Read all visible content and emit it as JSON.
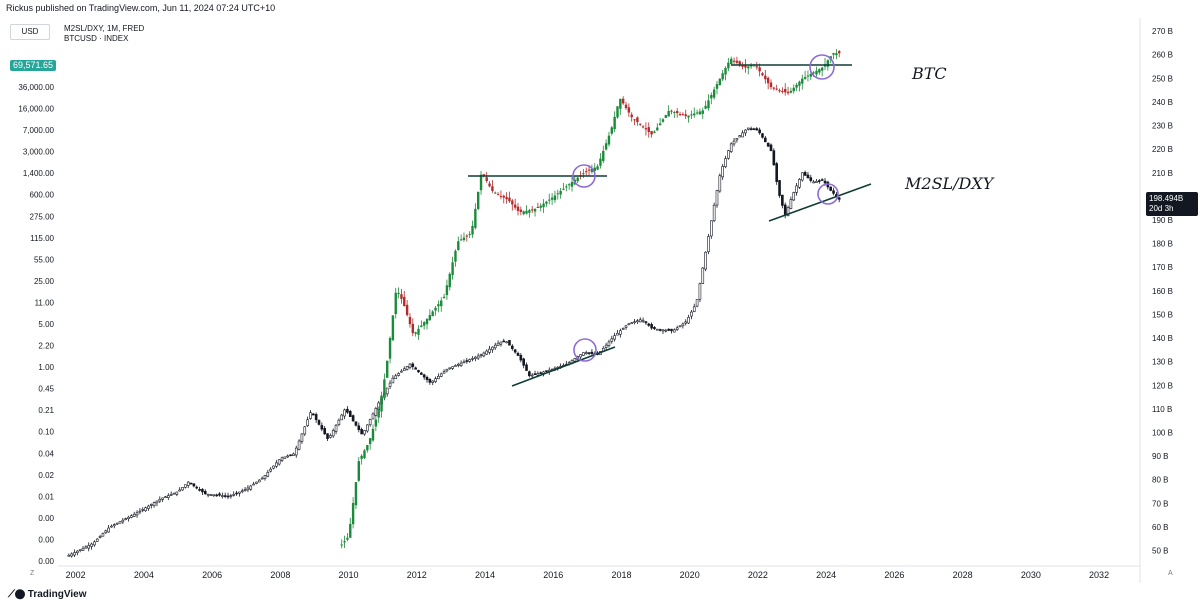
{
  "header": {
    "published": "Rickus published on TradingView.com, Jun 11, 2024 07:24 UTC+10",
    "currency_button": "USD",
    "legend_line1": "M2SL/DXY, 1M, FRED",
    "legend_line2": "BTCUSD · INDEX",
    "btc_price_badge": "69,571.65",
    "m2_value_badge": "198.494B",
    "m2_value_badge_sub": "20d 3h"
  },
  "footer": {
    "logo_text": "TradingView",
    "corner_left": "Z",
    "corner_right": "A"
  },
  "colors": {
    "up": "#26a69a",
    "down": "#ef5350",
    "btc_up": "#1b8a3a",
    "btc_down": "#b52a2a",
    "m2": "#131722",
    "trendline": "#0f3d36",
    "circle": "#8e6bd6",
    "grid": "#f0f3fa",
    "axis_text": "#131722"
  },
  "chart_data": {
    "type": "candlestick",
    "x_ticks": [
      "2002",
      "2004",
      "2006",
      "2008",
      "2010",
      "2012",
      "2014",
      "2016",
      "2018",
      "2020",
      "2022",
      "2024",
      "2026",
      "2028",
      "2030",
      "2032"
    ],
    "xlim": [
      2001.6,
      2033.2
    ],
    "left_axis": {
      "series": "BTCUSD",
      "scale": "log",
      "ticks": [
        "0.00",
        "0.00",
        "0.00",
        "0.01",
        "0.02",
        "0.04",
        "0.10",
        "0.21",
        "0.45",
        "1.00",
        "2.20",
        "5.00",
        "11.00",
        "25.00",
        "55.00",
        "115.00",
        "275.00",
        "600.00",
        "1,400.00",
        "3,000.00",
        "7,000.00",
        "16,000.00",
        "36,000.00"
      ]
    },
    "right_axis": {
      "series": "M2SL/DXY",
      "ticks": [
        "50 B",
        "60 B",
        "70 B",
        "80 B",
        "90 B",
        "100 B",
        "110 B",
        "120 B",
        "130 B",
        "140 B",
        "150 B",
        "160 B",
        "170 B",
        "180 B",
        "190 B",
        "200 B",
        "210 B",
        "220 B",
        "230 B",
        "240 B",
        "250 B",
        "260 B",
        "270 B"
      ],
      "ylim": [
        46,
        273
      ]
    },
    "series": [
      {
        "name": "M2SL/DXY",
        "points": [
          [
            2001.8,
            48
          ],
          [
            2002.5,
            53
          ],
          [
            2003.0,
            60
          ],
          [
            2003.8,
            66
          ],
          [
            2004.5,
            72
          ],
          [
            2005.0,
            75
          ],
          [
            2005.3,
            79
          ],
          [
            2005.8,
            74
          ],
          [
            2006.5,
            73
          ],
          [
            2007.0,
            76
          ],
          [
            2007.5,
            81
          ],
          [
            2008.0,
            89
          ],
          [
            2008.4,
            91
          ],
          [
            2008.9,
            109
          ],
          [
            2009.4,
            97
          ],
          [
            2009.9,
            110
          ],
          [
            2010.4,
            99
          ],
          [
            2010.9,
            113
          ],
          [
            2011.3,
            123
          ],
          [
            2011.8,
            129
          ],
          [
            2012.4,
            121
          ],
          [
            2012.9,
            127
          ],
          [
            2013.4,
            130
          ],
          [
            2013.9,
            133
          ],
          [
            2014.4,
            138
          ],
          [
            2014.6,
            139
          ],
          [
            2015.0,
            132
          ],
          [
            2015.3,
            124
          ],
          [
            2015.8,
            126
          ],
          [
            2016.4,
            129
          ],
          [
            2016.9,
            134
          ],
          [
            2017.3,
            133
          ],
          [
            2017.8,
            141
          ],
          [
            2018.2,
            146
          ],
          [
            2018.6,
            148
          ],
          [
            2018.9,
            144
          ],
          [
            2019.5,
            143
          ],
          [
            2019.9,
            147
          ],
          [
            2020.2,
            155
          ],
          [
            2020.4,
            171
          ],
          [
            2020.7,
            195
          ],
          [
            2020.9,
            210
          ],
          [
            2021.2,
            222
          ],
          [
            2021.7,
            229
          ],
          [
            2022.0,
            228
          ],
          [
            2022.4,
            219
          ],
          [
            2022.6,
            202
          ],
          [
            2022.8,
            192
          ],
          [
            2023.0,
            200
          ],
          [
            2023.3,
            210
          ],
          [
            2023.6,
            206
          ],
          [
            2023.9,
            207
          ],
          [
            2024.1,
            203
          ],
          [
            2024.4,
            198.5
          ]
        ]
      },
      {
        "name": "BTCUSD",
        "points": [
          [
            2009.8,
            0.0015
          ],
          [
            2010.0,
            0.002
          ],
          [
            2010.3,
            0.03
          ],
          [
            2010.6,
            0.06
          ],
          [
            2010.9,
            0.2
          ],
          [
            2011.1,
            0.8
          ],
          [
            2011.4,
            15
          ],
          [
            2011.6,
            9
          ],
          [
            2011.9,
            2.8
          ],
          [
            2012.3,
            5
          ],
          [
            2012.8,
            11
          ],
          [
            2013.2,
            80
          ],
          [
            2013.6,
            110
          ],
          [
            2013.9,
            1000
          ],
          [
            2014.2,
            500
          ],
          [
            2014.7,
            350
          ],
          [
            2015.0,
            230
          ],
          [
            2015.5,
            260
          ],
          [
            2016.0,
            400
          ],
          [
            2016.5,
            650
          ],
          [
            2016.9,
            950
          ],
          [
            2017.3,
            1200
          ],
          [
            2017.7,
            4500
          ],
          [
            2017.95,
            14000
          ],
          [
            2018.3,
            7000
          ],
          [
            2018.9,
            3700
          ],
          [
            2019.4,
            9000
          ],
          [
            2019.9,
            7200
          ],
          [
            2020.4,
            9000
          ],
          [
            2020.9,
            29000
          ],
          [
            2021.2,
            58000
          ],
          [
            2021.6,
            41000
          ],
          [
            2021.9,
            47000
          ],
          [
            2022.4,
            20000
          ],
          [
            2022.9,
            16500
          ],
          [
            2023.3,
            28000
          ],
          [
            2023.9,
            42000
          ],
          [
            2024.2,
            70000
          ],
          [
            2024.4,
            69571.65
          ]
        ]
      }
    ],
    "annotations": [
      {
        "text": "BTC"
      },
      {
        "text": "M2SL/DXY"
      }
    ]
  }
}
